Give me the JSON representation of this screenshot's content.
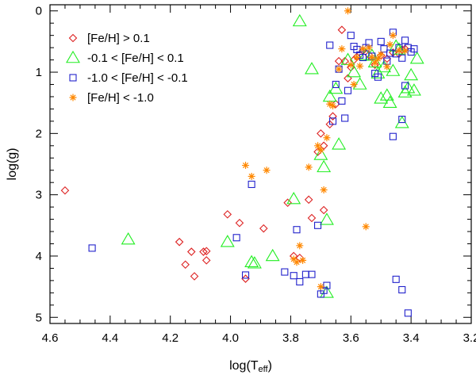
{
  "chart_data": {
    "type": "scatter",
    "xlabel_main": "log(T",
    "xlabel_sub": "eff",
    "xlabel_close": ")",
    "ylabel": "log(g)",
    "xlim": [
      4.6,
      3.2
    ],
    "ylim": [
      5.1,
      -0.1
    ],
    "xticks": [
      {
        "v": 4.6,
        "label": "4.6"
      },
      {
        "v": 4.4,
        "label": "4.4"
      },
      {
        "v": 4.2,
        "label": "4.2"
      },
      {
        "v": 4.0,
        "label": "4.0"
      },
      {
        "v": 3.8,
        "label": "3.8"
      },
      {
        "v": 3.6,
        "label": "3.6"
      },
      {
        "v": 3.4,
        "label": "3.4"
      },
      {
        "v": 3.2,
        "label": "3.2"
      }
    ],
    "yticks": [
      {
        "v": 0,
        "label": "0"
      },
      {
        "v": 1,
        "label": "1"
      },
      {
        "v": 2,
        "label": "2"
      },
      {
        "v": 3,
        "label": "3"
      },
      {
        "v": 4,
        "label": "4"
      },
      {
        "v": 5,
        "label": "5"
      }
    ],
    "colors": {
      "red": "#dd2222",
      "green": "#22ee22",
      "blue": "#2222cc",
      "orange": "#ff8800"
    },
    "series": [
      {
        "name": "[Fe/H] > 0.1",
        "marker": "diamond",
        "color_key": "red",
        "points": [
          [
            4.55,
            2.93
          ],
          [
            4.17,
            3.77
          ],
          [
            4.15,
            4.14
          ],
          [
            4.13,
            3.93
          ],
          [
            4.12,
            4.33
          ],
          [
            4.09,
            3.93
          ],
          [
            4.08,
            3.92
          ],
          [
            4.08,
            4.07
          ],
          [
            4.01,
            3.32
          ],
          [
            3.97,
            3.46
          ],
          [
            3.95,
            4.37
          ],
          [
            3.89,
            3.55
          ],
          [
            3.81,
            3.13
          ],
          [
            3.79,
            4.0
          ],
          [
            3.77,
            4.03
          ],
          [
            3.74,
            3.08
          ],
          [
            3.73,
            3.38
          ],
          [
            3.71,
            2.3
          ],
          [
            3.7,
            2.0
          ],
          [
            3.69,
            2.2
          ],
          [
            3.69,
            3.25
          ],
          [
            3.67,
            1.85
          ],
          [
            3.66,
            1.72
          ],
          [
            3.65,
            1.52
          ],
          [
            3.64,
            0.82
          ],
          [
            3.63,
            0.31
          ],
          [
            3.62,
            0.82
          ],
          [
            3.61,
            1.1
          ],
          [
            3.6,
            0.92
          ],
          [
            3.59,
            0.8
          ],
          [
            3.58,
            0.75
          ],
          [
            3.56,
            0.65
          ],
          [
            3.54,
            0.72
          ],
          [
            3.52,
            0.88
          ],
          [
            3.5,
            0.73
          ],
          [
            3.48,
            0.78
          ],
          [
            3.46,
            0.68
          ],
          [
            3.44,
            0.7
          ],
          [
            3.43,
            0.63
          ],
          [
            3.42,
            0.62
          ]
        ]
      },
      {
        "name": "-0.1 < [Fe/H] < 0.1",
        "marker": "triangle",
        "color_key": "green",
        "points": [
          [
            4.34,
            3.73
          ],
          [
            4.01,
            3.77
          ],
          [
            3.93,
            4.1
          ],
          [
            3.92,
            4.12
          ],
          [
            3.86,
            4.0
          ],
          [
            3.79,
            3.07
          ],
          [
            3.77,
            0.17
          ],
          [
            3.73,
            0.95
          ],
          [
            3.7,
            2.35
          ],
          [
            3.69,
            2.55
          ],
          [
            3.68,
            3.41
          ],
          [
            3.68,
            4.6
          ],
          [
            3.67,
            1.4
          ],
          [
            3.65,
            1.27
          ],
          [
            3.64,
            2.18
          ],
          [
            3.61,
            0.8
          ],
          [
            3.59,
            1.0
          ],
          [
            3.57,
            1.2
          ],
          [
            3.55,
            0.72
          ],
          [
            3.53,
            0.73
          ],
          [
            3.52,
            0.84
          ],
          [
            3.51,
            1.02
          ],
          [
            3.5,
            1.43
          ],
          [
            3.49,
            0.92
          ],
          [
            3.48,
            1.38
          ],
          [
            3.47,
            1.5
          ],
          [
            3.46,
            0.98
          ],
          [
            3.45,
            0.58
          ],
          [
            3.44,
            0.63
          ],
          [
            3.43,
            1.83
          ],
          [
            3.42,
            1.33
          ],
          [
            3.41,
            1.26
          ],
          [
            3.4,
            1.05
          ],
          [
            3.39,
            1.3
          ],
          [
            3.38,
            0.78
          ]
        ]
      },
      {
        "name": "-1.0 < [Fe/H] < -0.1",
        "marker": "square",
        "color_key": "blue",
        "points": [
          [
            4.46,
            3.87
          ],
          [
            3.98,
            3.7
          ],
          [
            3.95,
            4.31
          ],
          [
            3.93,
            2.83
          ],
          [
            3.82,
            4.26
          ],
          [
            3.79,
            4.32
          ],
          [
            3.78,
            3.57
          ],
          [
            3.77,
            4.42
          ],
          [
            3.75,
            4.3
          ],
          [
            3.73,
            4.3
          ],
          [
            3.71,
            3.5
          ],
          [
            3.7,
            4.62
          ],
          [
            3.69,
            4.56
          ],
          [
            3.68,
            4.48
          ],
          [
            3.67,
            0.56
          ],
          [
            3.66,
            1.8
          ],
          [
            3.65,
            1.2
          ],
          [
            3.64,
            0.95
          ],
          [
            3.63,
            1.47
          ],
          [
            3.62,
            1.75
          ],
          [
            3.61,
            1.3
          ],
          [
            3.6,
            0.4
          ],
          [
            3.59,
            0.58
          ],
          [
            3.58,
            0.63
          ],
          [
            3.57,
            0.72
          ],
          [
            3.56,
            0.76
          ],
          [
            3.55,
            0.6
          ],
          [
            3.54,
            0.52
          ],
          [
            3.53,
            0.74
          ],
          [
            3.52,
            1.02
          ],
          [
            3.51,
            1.08
          ],
          [
            3.5,
            0.5
          ],
          [
            3.49,
            0.62
          ],
          [
            3.48,
            0.82
          ],
          [
            3.47,
            0.69
          ],
          [
            3.46,
            0.35
          ],
          [
            3.45,
            0.7
          ],
          [
            3.44,
            0.6
          ],
          [
            3.43,
            0.77
          ],
          [
            3.42,
            0.48
          ],
          [
            3.41,
            0.6
          ],
          [
            3.4,
            0.67
          ],
          [
            3.39,
            0.62
          ],
          [
            3.43,
            1.77
          ],
          [
            3.46,
            2.05
          ],
          [
            3.45,
            4.38
          ],
          [
            3.43,
            4.55
          ],
          [
            3.41,
            4.93
          ],
          [
            3.42,
            1.22
          ]
        ]
      },
      {
        "name": "[Fe/H] < -1.0",
        "marker": "asterisk",
        "color_key": "orange",
        "points": [
          [
            3.95,
            2.52
          ],
          [
            3.93,
            2.7
          ],
          [
            3.88,
            2.6
          ],
          [
            3.79,
            4.05
          ],
          [
            3.78,
            4.1
          ],
          [
            3.77,
            3.83
          ],
          [
            3.76,
            4.07
          ],
          [
            3.74,
            2.55
          ],
          [
            3.71,
            2.2
          ],
          [
            3.7,
            2.27
          ],
          [
            3.69,
            2.92
          ],
          [
            3.68,
            2.07
          ],
          [
            3.67,
            1.52
          ],
          [
            3.66,
            1.55
          ],
          [
            3.64,
            0.95
          ],
          [
            3.63,
            0.62
          ],
          [
            3.61,
            0.0
          ],
          [
            3.6,
            0.88
          ],
          [
            3.59,
            1.2
          ],
          [
            3.58,
            0.76
          ],
          [
            3.57,
            0.9
          ],
          [
            3.56,
            0.62
          ],
          [
            3.55,
            3.52
          ],
          [
            3.54,
            0.6
          ],
          [
            3.53,
            0.76
          ],
          [
            3.52,
            0.85
          ],
          [
            3.51,
            0.78
          ],
          [
            3.5,
            0.71
          ],
          [
            3.48,
            0.91
          ],
          [
            3.47,
            0.55
          ],
          [
            3.46,
            0.4
          ],
          [
            3.44,
            0.65
          ],
          [
            3.42,
            0.65
          ],
          [
            3.7,
            4.5
          ]
        ]
      }
    ]
  }
}
